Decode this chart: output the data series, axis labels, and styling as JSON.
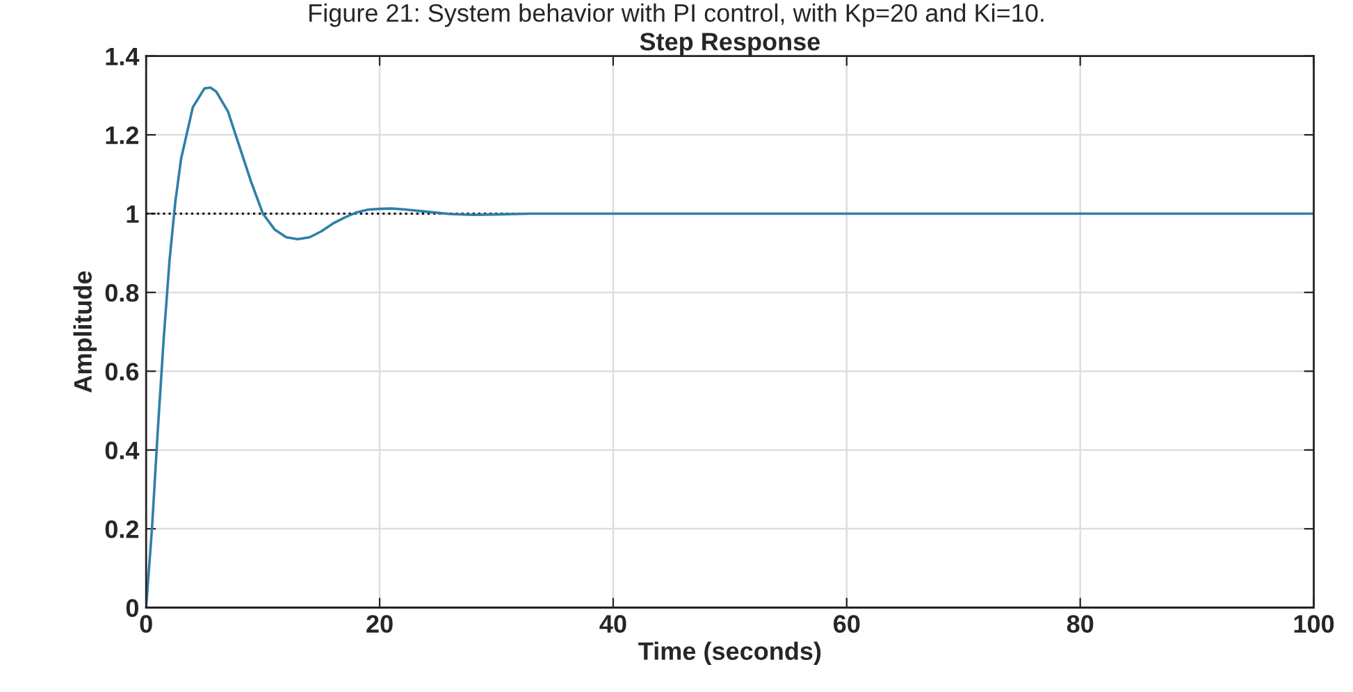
{
  "chart_data": {
    "type": "line",
    "title": "Step Response",
    "xlabel": "Time (seconds)",
    "ylabel": "Amplitude",
    "annotations": [
      "Figure 21: System behavior with PI control, with Kp=20 and Ki=10."
    ],
    "x": [
      0,
      0.5,
      1,
      1.5,
      2,
      2.5,
      3,
      4,
      5,
      5.5,
      6,
      7,
      8,
      9,
      10,
      11,
      12,
      13,
      14,
      15,
      16,
      17,
      18,
      19,
      20,
      21,
      22,
      24,
      26,
      28,
      30,
      33,
      40,
      100
    ],
    "series": [
      {
        "color": "#2f7fa8",
        "values": [
          0,
          0.2,
          0.45,
          0.68,
          0.88,
          1.03,
          1.14,
          1.27,
          1.318,
          1.32,
          1.31,
          1.26,
          1.17,
          1.08,
          1.0,
          0.96,
          0.94,
          0.935,
          0.94,
          0.955,
          0.975,
          0.99,
          1.003,
          1.01,
          1.012,
          1.013,
          1.011,
          1.005,
          0.999,
          0.997,
          0.998,
          1.0,
          1.0,
          1.0
        ]
      }
    ],
    "ref_lines": [
      {
        "axis": "y",
        "value": 1,
        "color": "#000000",
        "line_style": "dotted"
      }
    ],
    "xlim": [
      0,
      100
    ],
    "xticks": [
      0,
      20,
      40,
      60,
      80,
      100
    ],
    "ylim": [
      0,
      1.4
    ],
    "yticks": [
      0,
      0.2,
      0.4,
      0.6,
      0.8,
      1,
      1.2,
      1.4
    ],
    "grid": true
  }
}
